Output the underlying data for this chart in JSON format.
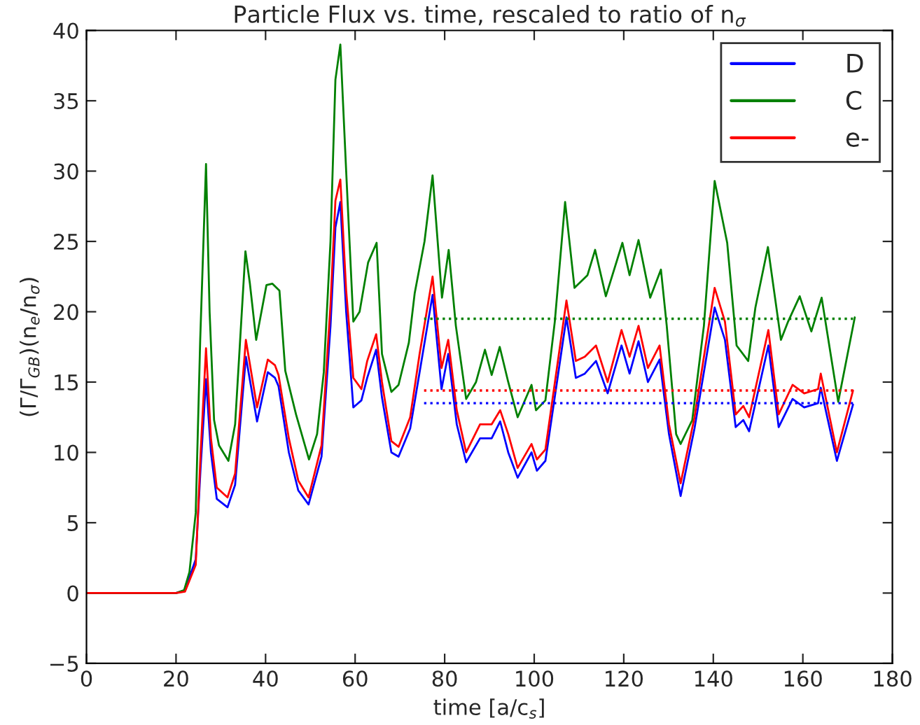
{
  "chart_data": {
    "type": "line",
    "title": "Particle Flux vs. time, rescaled to ratio of n$_{σ}$",
    "xlabel": "time [a/c$_{s}$]",
    "ylabel": "(Γ/Γ$_{GB}$)(n$_{e}$/n$_{σ}$)",
    "xlim": [
      0,
      180
    ],
    "xticks": [
      0,
      20,
      40,
      60,
      80,
      100,
      120,
      140,
      160,
      180
    ],
    "ylim": [
      -5,
      40
    ],
    "yticks": [
      -5,
      0,
      5,
      10,
      15,
      20,
      25,
      30,
      35,
      40
    ],
    "grid": false,
    "legend": "top right",
    "marker": "none",
    "line_style": "solid",
    "series": [
      {
        "name": "D",
        "color": "#0000ff",
        "x": [
          0,
          20,
          22,
          24.4,
          25.5,
          26.7,
          27.8,
          29.1,
          31.5,
          33.2,
          35.6,
          38.1,
          40.5,
          42.1,
          42.9,
          45.2,
          47.3,
          49.6,
          52.5,
          54.5,
          55.6,
          56.7,
          58,
          59.6,
          61.4,
          62.7,
          64.7,
          66,
          68.1,
          69.7,
          72.3,
          74.4,
          77.3,
          79.3,
          80.8,
          82.7,
          84.8,
          87.9,
          90.5,
          92.4,
          94.2,
          96.3,
          99.4,
          100.6,
          102.5,
          107.2,
          109.3,
          111.3,
          113.8,
          116.4,
          119.5,
          121.3,
          123.3,
          125.4,
          128,
          130.1,
          132.7,
          135.8,
          140.3,
          142.6,
          145,
          146.7,
          148,
          152.3,
          154.6,
          157.7,
          160.3,
          163.4,
          164,
          167.6,
          171.2
        ],
        "values": [
          0,
          0,
          0.2,
          2.4,
          9,
          15.2,
          10,
          6.7,
          6.1,
          7.7,
          16.8,
          12.2,
          15.7,
          15.3,
          14.7,
          10,
          7.3,
          6.3,
          9.7,
          19,
          26,
          27.8,
          20,
          13.2,
          13.7,
          15.3,
          17.3,
          13.9,
          10,
          9.7,
          11.7,
          15.7,
          21.2,
          14.5,
          17,
          12,
          9.3,
          11,
          11,
          12.2,
          10,
          8.2,
          10,
          8.7,
          9.4,
          19.6,
          15.3,
          15.6,
          16.5,
          14.2,
          17.6,
          15.6,
          17.9,
          15,
          16.6,
          11.3,
          6.9,
          11.7,
          20.3,
          18,
          11.8,
          12.3,
          11.5,
          17.6,
          11.8,
          13.8,
          13.2,
          13.5,
          14.6,
          9.4,
          13.4
        ]
      },
      {
        "name": "C",
        "color": "#008000",
        "x": [
          0,
          20,
          21.8,
          23,
          24.4,
          25.4,
          26.7,
          27.5,
          28.5,
          29.6,
          31.7,
          33.2,
          35.5,
          36.5,
          37.9,
          40.2,
          41.5,
          43.1,
          44.4,
          46.8,
          49.7,
          51.5,
          53,
          54.5,
          55.6,
          56.7,
          58,
          59.6,
          61,
          62.9,
          64.8,
          66,
          68.1,
          69.7,
          72,
          73.3,
          75.5,
          77.3,
          79.4,
          80.9,
          82.5,
          84.8,
          87,
          89,
          90.5,
          92.3,
          94.2,
          96.3,
          99.4,
          100.4,
          102.5,
          104.6,
          106.9,
          109,
          111.9,
          113.6,
          116,
          119.7,
          121.3,
          123.3,
          125.9,
          128.3,
          129.6,
          131.7,
          132.7,
          135.3,
          137.9,
          140.3,
          143.1,
          145.2,
          147.8,
          149.4,
          152.2,
          155.1,
          156.7,
          159.3,
          161.9,
          164.2,
          167.9,
          171.6
        ],
        "values": [
          0,
          0,
          0.2,
          1.5,
          5.7,
          18,
          30.5,
          20,
          12.3,
          10.5,
          9.4,
          12,
          24.3,
          22,
          18,
          21.9,
          22,
          21.5,
          15.8,
          12.7,
          9.5,
          11.3,
          15.7,
          25,
          36.5,
          39,
          30,
          19.3,
          20,
          23.5,
          24.9,
          17,
          14.3,
          14.8,
          17.8,
          21.3,
          25,
          29.7,
          21,
          24.4,
          19,
          13.8,
          15,
          17.3,
          15.5,
          17.5,
          15,
          12.5,
          14.8,
          13,
          13.7,
          19.3,
          27.8,
          21.7,
          22.6,
          24.4,
          21.1,
          24.9,
          22.6,
          25.1,
          21,
          23,
          19,
          11.3,
          10.6,
          12.3,
          19,
          29.3,
          24.9,
          17.6,
          16.5,
          20.3,
          24.6,
          18,
          19.3,
          21.1,
          18.6,
          21,
          13.6,
          19.6
        ]
      },
      {
        "name": "e-",
        "color": "#ff0000",
        "x": [
          0,
          20,
          22,
          24.4,
          25.5,
          26.7,
          27.8,
          29.1,
          31.5,
          33.2,
          35.6,
          38.1,
          40.5,
          42.1,
          42.9,
          45.2,
          47.3,
          49.6,
          52.5,
          54.5,
          55.6,
          56.7,
          58,
          59.6,
          61.4,
          62.7,
          64.7,
          66,
          68.1,
          69.7,
          72.3,
          74.4,
          77.3,
          79.3,
          80.8,
          82.7,
          84.8,
          87.9,
          90.5,
          92.4,
          94.2,
          96.3,
          99.4,
          100.6,
          102.5,
          107.2,
          109.3,
          111.3,
          113.8,
          116.4,
          119.5,
          121.3,
          123.3,
          125.4,
          128,
          130.1,
          132.7,
          135.8,
          140.3,
          142.6,
          145,
          146.7,
          148,
          152.3,
          154.6,
          157.7,
          160.3,
          163.4,
          164,
          167.6,
          171.2
        ],
        "values": [
          0,
          0,
          0.1,
          2,
          10,
          17.4,
          11,
          7.5,
          6.8,
          8.5,
          18,
          13.2,
          16.6,
          16.2,
          15.5,
          11,
          8,
          6.8,
          10.5,
          20.5,
          27.9,
          29.4,
          21.5,
          15.3,
          14.5,
          16.5,
          18.4,
          15,
          10.8,
          10.4,
          12.5,
          17,
          22.5,
          16,
          18,
          13,
          10,
          12,
          12,
          13,
          11.3,
          8.9,
          10.6,
          9.5,
          10.2,
          20.8,
          16.5,
          16.8,
          17.6,
          15,
          18.7,
          16.8,
          19,
          16,
          17.6,
          12,
          7.8,
          12.5,
          21.7,
          19.3,
          12.7,
          13.3,
          12.5,
          18.7,
          12.7,
          14.8,
          14.2,
          14.5,
          15.6,
          10,
          14.4
        ]
      },
      {
        "color": "#0000ff",
        "line_style": "dotted",
        "x": [
          75.4,
          171.2
        ],
        "values": [
          13.5,
          13.5
        ]
      },
      {
        "color": "#008000",
        "line_style": "dotted",
        "x": [
          75.4,
          171.2
        ],
        "values": [
          19.5,
          19.5
        ]
      },
      {
        "color": "#ff0000",
        "line_style": "dotted",
        "x": [
          75.4,
          171.2
        ],
        "values": [
          14.4,
          14.4
        ]
      }
    ]
  }
}
